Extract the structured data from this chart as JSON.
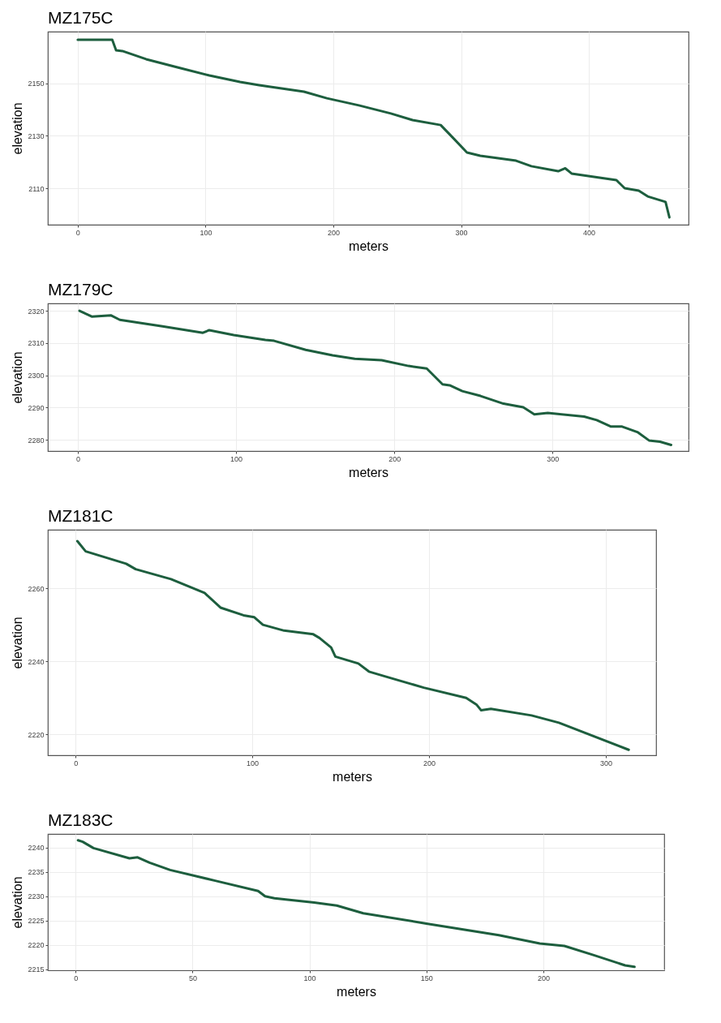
{
  "chart_data": [
    {
      "type": "line",
      "title": "MZ175C",
      "xlabel": "meters",
      "ylabel": "elevation",
      "x": [
        0,
        27,
        30,
        35,
        53.5,
        78,
        103,
        127,
        142,
        177,
        195,
        220,
        245,
        262,
        284,
        293.5,
        304.6,
        315,
        343,
        355,
        376,
        381.5,
        386.5,
        421.5,
        428,
        439,
        446,
        460,
        463
      ],
      "series": [
        {
          "color": "#1d5e3e",
          "values": [
            2166.6,
            2166.6,
            2162.6,
            2162.3,
            2159.2,
            2156.1,
            2153,
            2150.5,
            2149.3,
            2146.8,
            2144.3,
            2141.6,
            2138.5,
            2136,
            2134.1,
            2129.3,
            2123.6,
            2122.4,
            2120.5,
            2118.4,
            2116.5,
            2117.6,
            2115.6,
            2113.1,
            2110,
            2109.1,
            2106.9,
            2104.8,
            2098.9
          ]
        }
      ],
      "xlim": [
        -23.4,
        478
      ],
      "ylim": [
        2096.1,
        2169.7
      ],
      "xticks": [
        0,
        100,
        200,
        300,
        400
      ],
      "yticks": [
        2110,
        2130,
        2150
      ],
      "grid": true
    },
    {
      "type": "line",
      "title": "MZ179C",
      "xlabel": "meters",
      "ylabel": "elevation",
      "x": [
        1,
        9,
        20.8,
        26.5,
        53.5,
        79,
        83,
        98.5,
        118.5,
        124,
        144,
        161,
        175,
        192,
        209,
        220.5,
        230.5,
        235,
        243,
        254.5,
        269,
        281.5,
        288.5,
        297,
        320,
        328,
        337,
        344,
        354,
        361,
        368,
        375
      ],
      "series": [
        {
          "color": "#1d5e3e",
          "values": [
            2320,
            2318.2,
            2318.6,
            2317.2,
            2315.2,
            2313.2,
            2314,
            2312.5,
            2311,
            2310.7,
            2307.9,
            2306.2,
            2305.1,
            2304.7,
            2302.9,
            2302.1,
            2297.2,
            2296.9,
            2295.1,
            2293.6,
            2291.2,
            2290.1,
            2287.9,
            2288.3,
            2287.2,
            2286.1,
            2284.1,
            2284.1,
            2282.3,
            2279.8,
            2279.4,
            2278.4
          ]
        }
      ],
      "xlim": [
        -19,
        386
      ],
      "ylim": [
        2276.5,
        2322.3
      ],
      "xticks": [
        0,
        100,
        200,
        300
      ],
      "yticks": [
        2280,
        2290,
        2300,
        2310,
        2320
      ],
      "grid": true
    },
    {
      "type": "line",
      "title": "MZ181C",
      "xlabel": "meters",
      "ylabel": "elevation",
      "x": [
        1,
        5.7,
        28.6,
        34,
        54,
        73,
        82,
        95,
        101,
        106,
        118,
        134.5,
        138,
        144.6,
        147,
        160,
        166,
        176.5,
        197,
        221,
        227,
        229.5,
        235,
        258,
        273.5,
        313
      ],
      "series": [
        {
          "color": "#1d5e3e",
          "values": [
            2272.9,
            2270.1,
            2266.7,
            2265.2,
            2262.5,
            2258.7,
            2254.7,
            2252.6,
            2252.1,
            2250,
            2248.4,
            2247.4,
            2246.4,
            2243.8,
            2241.3,
            2239.4,
            2237.2,
            2235.7,
            2232.8,
            2230,
            2228.1,
            2226.6,
            2227,
            2225.2,
            2223.2,
            2215.8
          ]
        }
      ],
      "xlim": [
        -15.7,
        328.5
      ],
      "ylim": [
        2214.3,
        2276
      ],
      "xticks": [
        0,
        100,
        200,
        300
      ],
      "yticks": [
        2220,
        2240,
        2260
      ],
      "grid": true
    },
    {
      "type": "line",
      "title": "MZ183C",
      "xlabel": "meters",
      "ylabel": "elevation",
      "x": [
        1,
        3,
        7.6,
        23,
        26.5,
        31.6,
        40.4,
        59.7,
        78,
        81,
        85,
        102,
        111.7,
        123,
        150,
        181,
        198.5,
        209,
        221.6,
        235,
        239
      ],
      "series": [
        {
          "color": "#1d5e3e",
          "values": [
            2241.5,
            2241.2,
            2239.9,
            2237.8,
            2238,
            2236.9,
            2235.4,
            2233.2,
            2231.1,
            2230,
            2229.6,
            2228.7,
            2228.1,
            2226.5,
            2224.4,
            2222,
            2220.3,
            2219.8,
            2217.9,
            2215.8,
            2215.5
          ]
        }
      ],
      "xlim": [
        -11.9,
        251.7
      ],
      "ylim": [
        2214.8,
        2242.8
      ],
      "xticks": [
        0,
        50,
        100,
        150,
        200
      ],
      "yticks": [
        2215,
        2220,
        2225,
        2230,
        2235,
        2240
      ],
      "grid": true
    }
  ]
}
